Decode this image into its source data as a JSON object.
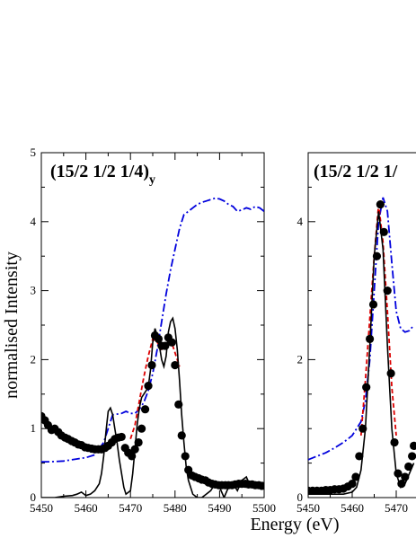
{
  "figure": {
    "ylabel": "normalised Intensity",
    "xlabel": "Energy (eV)"
  },
  "chart_data": [
    {
      "type": "line",
      "title": "(15/2 1/2 1/4)",
      "title_subscript": "y",
      "xlabel": "Energy (eV)",
      "ylabel": "normalised Intensity",
      "xlim": [
        5450,
        5500
      ],
      "ylim": [
        0,
        5
      ],
      "xticks": [
        "5450",
        "5460",
        "5470",
        "5480",
        "5490",
        "5500"
      ],
      "yticks": [
        "0",
        "1",
        "2",
        "3",
        "4",
        "5"
      ],
      "grid": false,
      "series": [
        {
          "style": "markers",
          "color": "#000000",
          "marker": "circle",
          "x": [
            5450,
            5450.8,
            5451.5,
            5452.3,
            5453,
            5453.8,
            5454.5,
            5455.3,
            5456,
            5456.8,
            5457.5,
            5458.3,
            5459,
            5459.8,
            5460.5,
            5461.3,
            5462,
            5462.8,
            5463.5,
            5464.3,
            5465,
            5465.8,
            5466.5,
            5467.3,
            5468,
            5468.8,
            5469.5,
            5470.3,
            5471,
            5471.8,
            5472.5,
            5473.3,
            5474,
            5474.8,
            5475.5,
            5476.3,
            5477,
            5477.8,
            5478.5,
            5479.3,
            5480,
            5480.8,
            5481.5,
            5482.3,
            5483,
            5483.8,
            5484.5,
            5485.3,
            5486,
            5486.8,
            5487.5,
            5488.3,
            5489,
            5489.8,
            5490.5,
            5491.3,
            5492,
            5492.8,
            5493.5,
            5494.3,
            5495,
            5495.8,
            5496.5,
            5497.3,
            5498,
            5498.8,
            5499.5
          ],
          "y": [
            1.18,
            1.12,
            1.05,
            0.98,
            1.0,
            0.95,
            0.9,
            0.87,
            0.85,
            0.82,
            0.8,
            0.77,
            0.76,
            0.73,
            0.72,
            0.71,
            0.7,
            0.7,
            0.7,
            0.72,
            0.75,
            0.8,
            0.85,
            0.87,
            0.88,
            0.72,
            0.65,
            0.6,
            0.7,
            0.8,
            1.0,
            1.28,
            1.62,
            1.92,
            2.35,
            2.3,
            2.2,
            2.2,
            2.32,
            2.25,
            1.92,
            1.35,
            0.9,
            0.6,
            0.4,
            0.32,
            0.3,
            0.28,
            0.26,
            0.25,
            0.22,
            0.2,
            0.19,
            0.18,
            0.18,
            0.18,
            0.18,
            0.18,
            0.19,
            0.2,
            0.2,
            0.2,
            0.19,
            0.19,
            0.18,
            0.18,
            0.17
          ]
        },
        {
          "style": "solid",
          "color": "#000000",
          "x": [
            5450,
            5453,
            5455,
            5457,
            5458,
            5459,
            5460,
            5461,
            5462,
            5463,
            5463.5,
            5464,
            5464.5,
            5465,
            5465.5,
            5466,
            5466.5,
            5467,
            5467.5,
            5468,
            5468.5,
            5469,
            5470,
            5470.5,
            5471,
            5471.5,
            5472,
            5472.5,
            5473,
            5473.5,
            5474,
            5474.5,
            5475,
            5475.5,
            5476,
            5476.5,
            5477,
            5477.5,
            5478,
            5478.5,
            5479,
            5479.5,
            5480,
            5480.5,
            5481,
            5481.5,
            5482,
            5482.5,
            5483,
            5484,
            5485,
            5486,
            5487,
            5488,
            5489,
            5490,
            5491,
            5492,
            5493,
            5494,
            5495,
            5496,
            5497,
            5498,
            5499,
            5500
          ],
          "y": [
            0,
            0,
            0.02,
            0.03,
            0.05,
            0.08,
            0.03,
            0.05,
            0.1,
            0.2,
            0.35,
            0.6,
            0.95,
            1.25,
            1.3,
            1.2,
            1.0,
            0.8,
            0.55,
            0.35,
            0.15,
            0.05,
            0.1,
            0.35,
            0.7,
            1.05,
            1.3,
            1.45,
            1.5,
            1.55,
            1.6,
            1.85,
            2.25,
            2.45,
            2.35,
            2.2,
            2.0,
            1.9,
            2.05,
            2.4,
            2.55,
            2.6,
            2.45,
            2.15,
            1.7,
            1.2,
            0.8,
            0.45,
            0.25,
            0.05,
            0.0,
            0.0,
            0.05,
            0.1,
            0.2,
            0.15,
            0.0,
            0.15,
            0.2,
            0.1,
            0.25,
            0.3,
            0.15,
            0.2,
            0.15,
            0.2
          ]
        },
        {
          "style": "dashed",
          "color": "#dd0000",
          "x": [
            5470,
            5471,
            5472,
            5473,
            5474,
            5475,
            5476,
            5477,
            5478,
            5479,
            5480,
            5481
          ],
          "y": [
            0.85,
            1.05,
            1.4,
            1.75,
            2.05,
            2.3,
            2.25,
            2.15,
            2.2,
            2.3,
            2.1,
            1.9
          ]
        },
        {
          "style": "dashdot",
          "color": "#0000dd",
          "x": [
            5450,
            5452,
            5455,
            5458,
            5460,
            5462,
            5464,
            5466,
            5468,
            5469,
            5470,
            5471,
            5472,
            5473,
            5474,
            5475,
            5476,
            5477,
            5478,
            5479,
            5480,
            5481,
            5482,
            5483,
            5484,
            5485,
            5486,
            5487,
            5488,
            5489,
            5490,
            5491,
            5492,
            5493,
            5494,
            5495,
            5496,
            5497,
            5498,
            5499,
            5500
          ],
          "y": [
            0.52,
            0.52,
            0.53,
            0.56,
            0.58,
            0.62,
            0.8,
            1.2,
            1.22,
            1.25,
            1.22,
            1.22,
            1.28,
            1.38,
            1.55,
            1.8,
            2.15,
            2.55,
            2.95,
            3.3,
            3.6,
            3.9,
            4.1,
            4.15,
            4.2,
            4.25,
            4.28,
            4.3,
            4.32,
            4.34,
            4.33,
            4.3,
            4.25,
            4.22,
            4.15,
            4.17,
            4.2,
            4.18,
            4.22,
            4.2,
            4.15
          ]
        }
      ]
    },
    {
      "type": "line",
      "title": "(15/2 1/2 1/",
      "xlim": [
        5450,
        5500
      ],
      "ylim": [
        0,
        5
      ],
      "xticks": [
        "5450",
        "5460",
        "5470"
      ],
      "yticks": [
        "0",
        "2",
        "4"
      ],
      "grid": false,
      "series": [
        {
          "style": "markers",
          "color": "#000000",
          "marker": "circle",
          "x": [
            5450,
            5451,
            5452,
            5453,
            5454,
            5455,
            5456,
            5457,
            5458,
            5459,
            5460,
            5460.8,
            5461.6,
            5462.4,
            5463.2,
            5464,
            5464.8,
            5465.6,
            5466.4,
            5467.2,
            5468,
            5468.8,
            5469.6,
            5470.4,
            5471.2,
            5472,
            5472.8,
            5473.6,
            5474
          ],
          "y": [
            0.1,
            0.1,
            0.1,
            0.1,
            0.11,
            0.11,
            0.12,
            0.12,
            0.13,
            0.16,
            0.2,
            0.3,
            0.6,
            1.0,
            1.6,
            2.3,
            2.8,
            3.5,
            4.25,
            3.85,
            3.0,
            1.8,
            0.8,
            0.35,
            0.2,
            0.3,
            0.45,
            0.6,
            0.75
          ]
        },
        {
          "style": "solid",
          "color": "#000000",
          "x": [
            5450,
            5455,
            5458,
            5460,
            5461,
            5462,
            5463,
            5464,
            5465,
            5466,
            5467,
            5468,
            5469,
            5470,
            5471,
            5472,
            5473,
            5474
          ],
          "y": [
            0.05,
            0.05,
            0.05,
            0.08,
            0.15,
            0.4,
            1.0,
            2.2,
            3.5,
            4.15,
            3.6,
            2.2,
            1.0,
            0.35,
            0.15,
            0.2,
            0.35,
            0.5
          ]
        },
        {
          "style": "dashed",
          "color": "#dd0000",
          "x": [
            5462,
            5463,
            5464,
            5465,
            5466,
            5467,
            5468,
            5469,
            5470
          ],
          "y": [
            0.9,
            1.7,
            2.6,
            3.5,
            4.25,
            3.7,
            2.7,
            1.6,
            0.9
          ]
        },
        {
          "style": "dashdot",
          "color": "#0000dd",
          "x": [
            5450,
            5452,
            5454,
            5456,
            5458,
            5460,
            5462,
            5463,
            5464,
            5465,
            5466,
            5467,
            5468,
            5469,
            5470,
            5471,
            5472,
            5473,
            5474
          ],
          "y": [
            0.55,
            0.6,
            0.65,
            0.72,
            0.8,
            0.9,
            1.1,
            1.4,
            2.0,
            3.0,
            4.0,
            4.35,
            4.15,
            3.4,
            2.7,
            2.45,
            2.4,
            2.42,
            2.5
          ]
        }
      ]
    }
  ]
}
